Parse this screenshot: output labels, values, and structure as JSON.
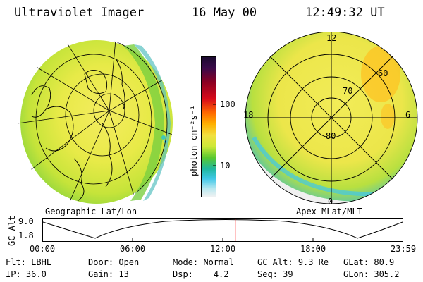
{
  "header": {
    "instrument": "Ultraviolet Imager",
    "date": "16 May 00",
    "time": "12:49:32 UT"
  },
  "colorbar": {
    "unit_label": "photon cm⁻²s⁻¹",
    "tick_100": "100",
    "tick_10": "10",
    "colors_top_to_bottom": [
      "#1a0a2e",
      "#3a0a4a",
      "#8a0022",
      "#d80a1a",
      "#ff6a00",
      "#ffb000",
      "#f2e040",
      "#cce838",
      "#58c830",
      "#20b8a0",
      "#40c8e8",
      "#b8e8f0",
      "#f2f2f2"
    ]
  },
  "geo_map": {
    "label": "Geographic Lat/Lon"
  },
  "apex_map": {
    "label": "Apex MLat/MLT",
    "lat_labels": [
      "80",
      "70",
      "60"
    ],
    "mlt_labels": {
      "top": "12",
      "right": "6",
      "bottom": "0",
      "left": "18"
    }
  },
  "alt_plot": {
    "axis_label": "GC Alt",
    "y_ticks": [
      "9.0",
      "1.8"
    ],
    "x_ticks": [
      "00:00",
      "06:00",
      "12:00",
      "18:00",
      "23:59"
    ],
    "current_time_marker_hours": 12.83,
    "marker_color": "#ff0000"
  },
  "status": {
    "flt_label": "Flt:",
    "flt_value": "LBHL",
    "door_label": "Door:",
    "door_value": "Open",
    "mode_label": "Mode:",
    "mode_value": "Normal",
    "gcalt_label": "GC Alt:",
    "gcalt_value": "9.3 Re",
    "glat_label": "GLat:",
    "glat_value": "80.9",
    "ip_label": "IP:",
    "ip_value": "36.0",
    "gain_label": "Gain:",
    "gain_value": "13",
    "dsp_label": "Dsp:",
    "dsp_value": "4.2",
    "seq_label": "Seq:",
    "seq_value": "39",
    "glon_label": "GLon:",
    "glon_value": "305.2"
  }
}
